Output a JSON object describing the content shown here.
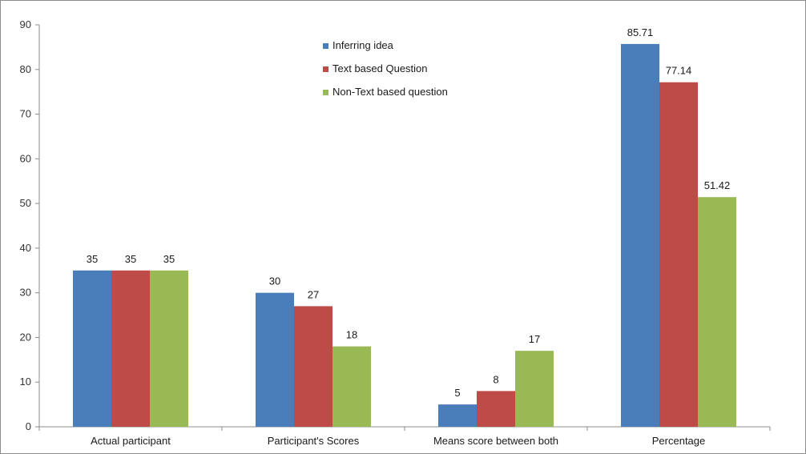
{
  "chart_data": {
    "type": "bar",
    "categories": [
      "Actual participant",
      "Participant's  Scores",
      "Means score between  both",
      "Percentage"
    ],
    "series": [
      {
        "name": "Inferring idea",
        "color": "#4a7ebb",
        "values": [
          35,
          30,
          5,
          85.71
        ],
        "labels": [
          "35",
          "30",
          "5",
          "85.71"
        ]
      },
      {
        "name": "Text based  Question",
        "color": "#be4b48",
        "values": [
          35,
          27,
          8,
          77.14
        ],
        "labels": [
          "35",
          "27",
          "8",
          "77.14"
        ]
      },
      {
        "name": "Non-Text based question",
        "color": "#98b954",
        "values": [
          35,
          18,
          17,
          51.42
        ],
        "labels": [
          "35",
          "18",
          "17",
          "51.42"
        ]
      }
    ],
    "yticks": [
      "0",
      "10",
      "20",
      "30",
      "40",
      "50",
      "60",
      "70",
      "80",
      "90"
    ],
    "ylim": [
      0,
      90
    ],
    "legend_position": "top-center",
    "grid": false
  }
}
